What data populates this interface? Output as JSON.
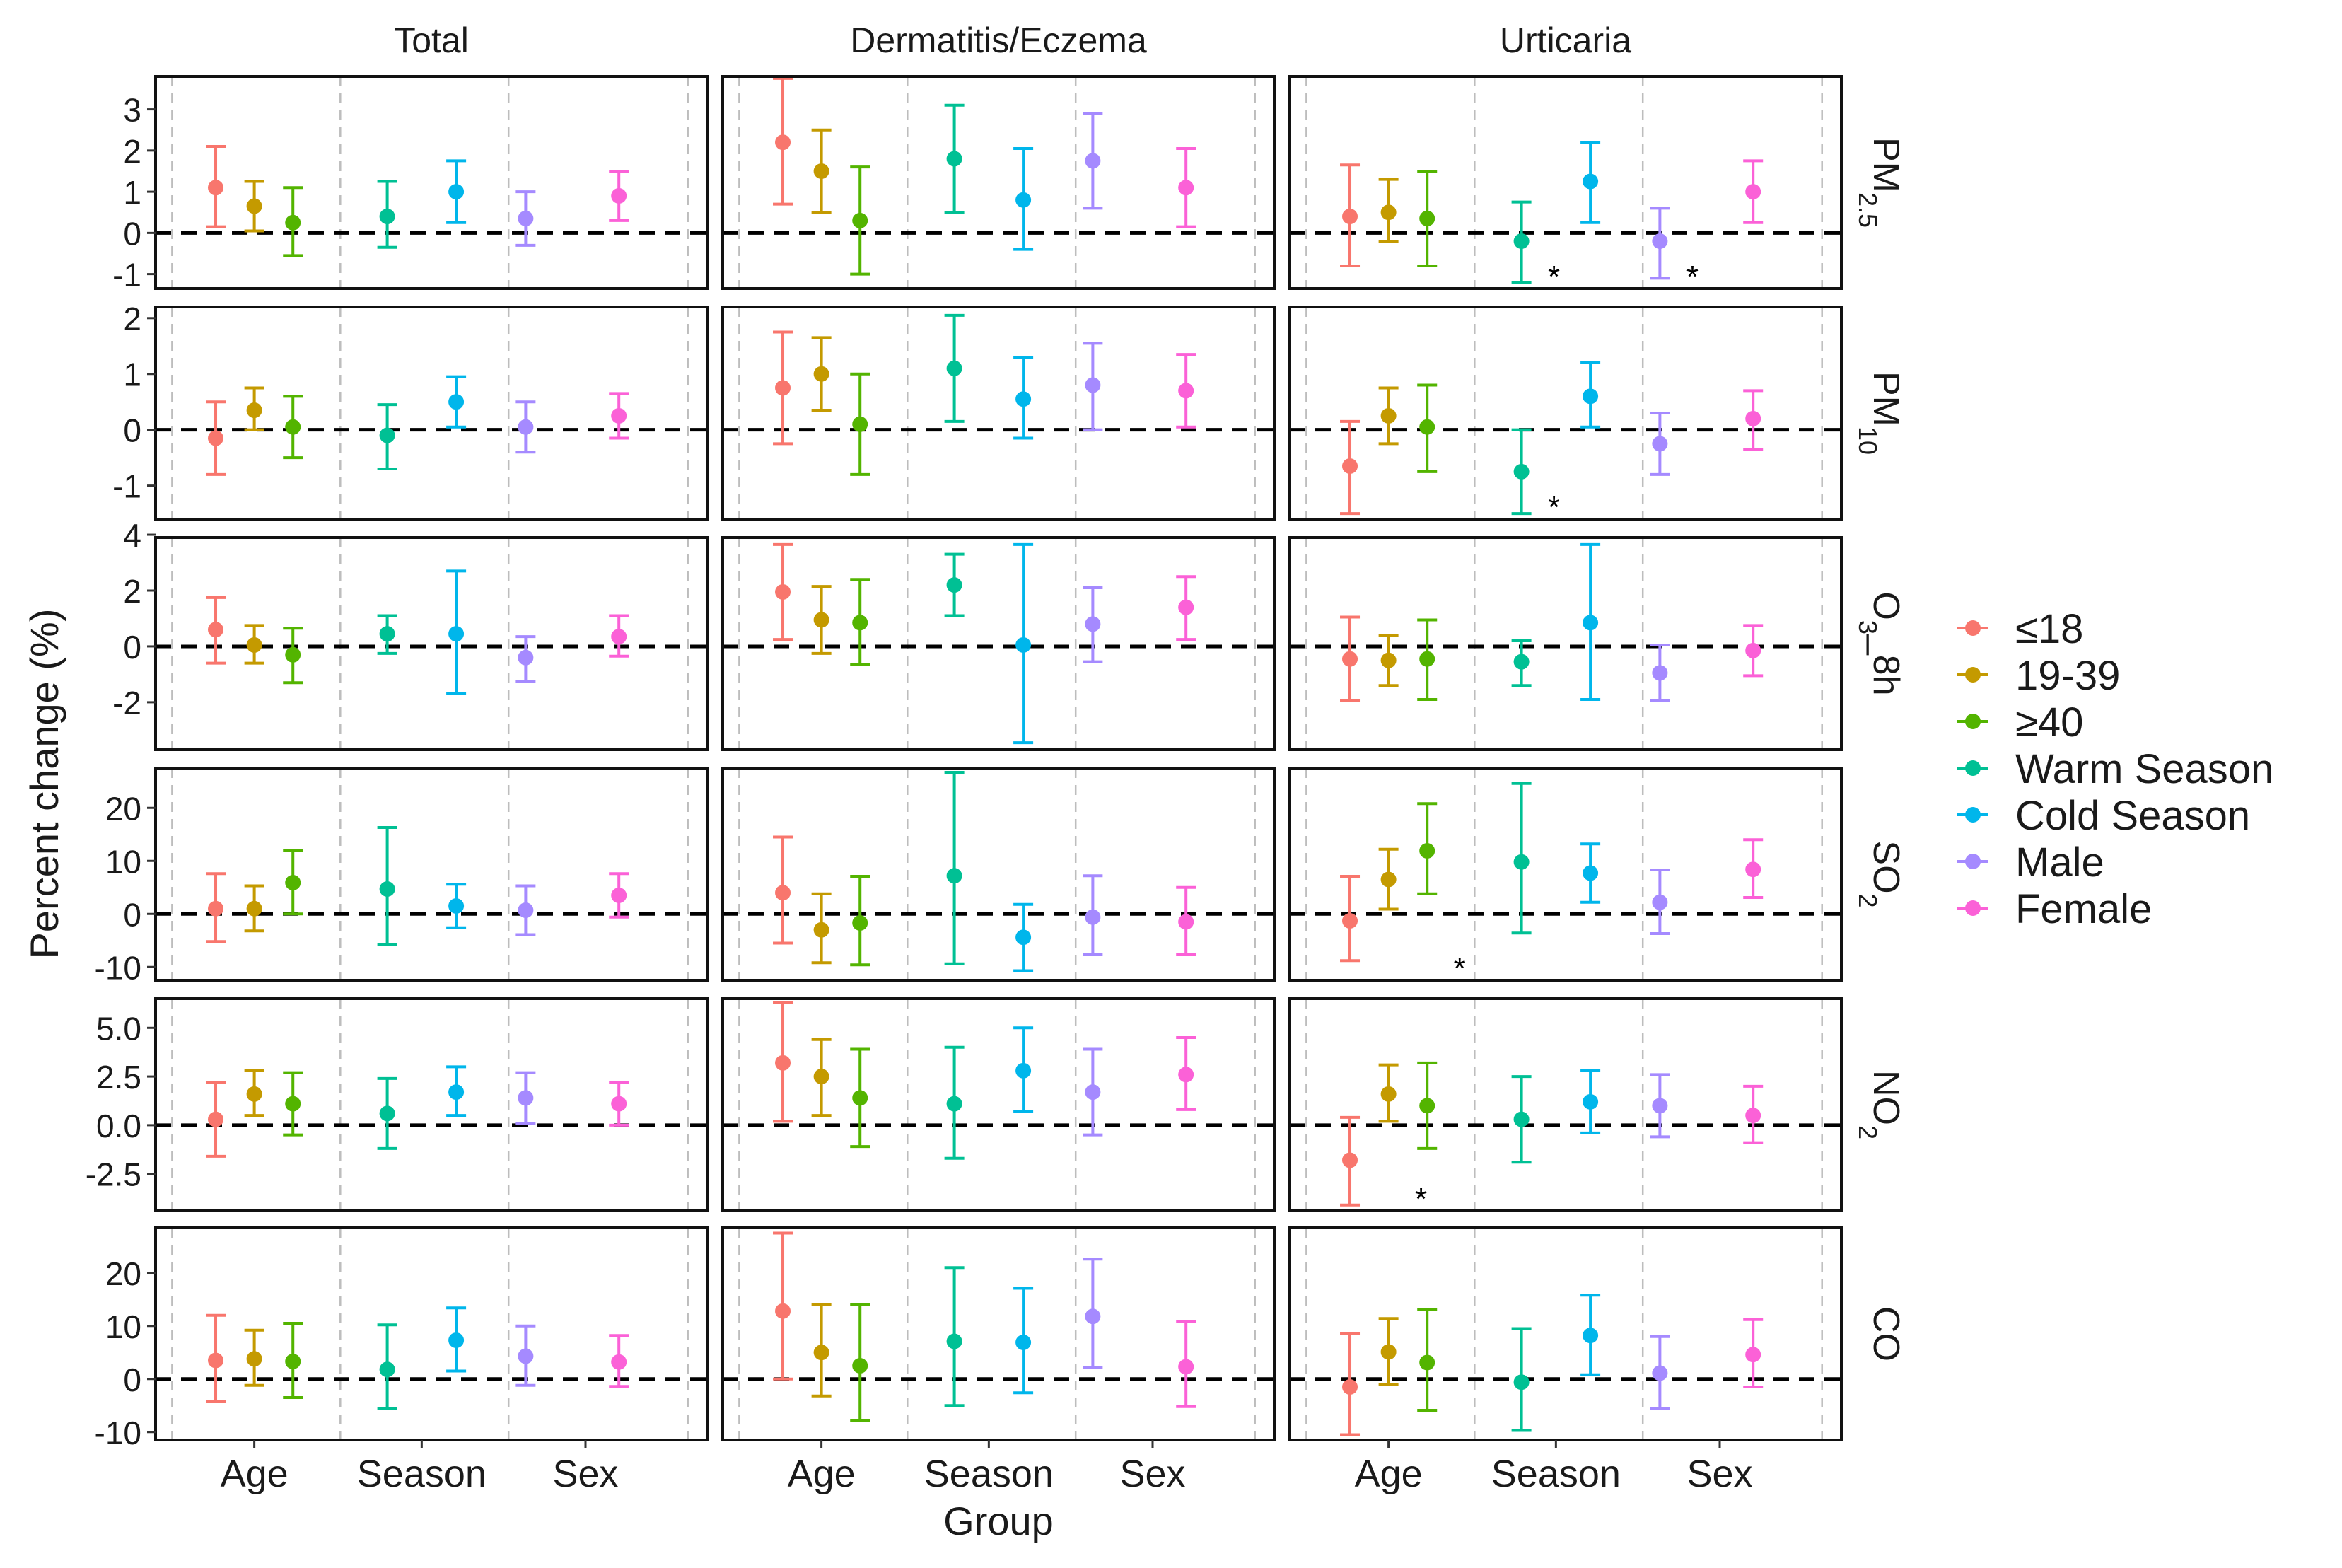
{
  "chart_data": {
    "type": "errorbar",
    "y_axis_label": "Percent change (%)",
    "x_axis_label": "Group",
    "columns": [
      "Total",
      "Dermatitis/Eczema",
      "Urticaria"
    ],
    "groups": [
      "Age",
      "Season",
      "Sex"
    ],
    "series": [
      {
        "name": "≤18",
        "group": "Age",
        "color": "#F8766D"
      },
      {
        "name": "19-39",
        "group": "Age",
        "color": "#C49A00"
      },
      {
        "name": "≥40",
        "group": "Age",
        "color": "#53B400"
      },
      {
        "name": "Warm Season",
        "group": "Season",
        "color": "#00C094"
      },
      {
        "name": "Cold Season",
        "group": "Season",
        "color": "#00B6EB"
      },
      {
        "name": "Male",
        "group": "Sex",
        "color": "#A58AFF"
      },
      {
        "name": "Female",
        "group": "Sex",
        "color": "#FB61D7"
      }
    ],
    "rows": [
      {
        "label_main": "PM",
        "label_sub": "2.5",
        "ylim": [
          -1.35,
          3.8
        ],
        "ticks": [
          "3",
          "2",
          "1",
          "0",
          "-1"
        ],
        "tick_values": [
          3,
          2,
          1,
          0,
          -1
        ],
        "panels": [
          {
            "values": [
              [
                1.1,
                0.15,
                2.1
              ],
              [
                0.65,
                0.05,
                1.25
              ],
              [
                0.25,
                -0.55,
                1.1
              ],
              [
                0.4,
                -0.35,
                1.25
              ],
              [
                1.0,
                0.25,
                1.75
              ],
              [
                0.35,
                -0.3,
                1.0
              ],
              [
                0.9,
                0.3,
                1.5
              ]
            ],
            "stars": []
          },
          {
            "values": [
              [
                2.2,
                0.7,
                3.75
              ],
              [
                1.5,
                0.5,
                2.5
              ],
              [
                0.3,
                -1.0,
                1.6
              ],
              [
                1.8,
                0.5,
                3.1
              ],
              [
                0.8,
                -0.4,
                2.05
              ],
              [
                1.75,
                0.6,
                2.9
              ],
              [
                1.1,
                0.15,
                2.05
              ]
            ],
            "stars": []
          },
          {
            "values": [
              [
                0.4,
                -0.8,
                1.65
              ],
              [
                0.5,
                -0.2,
                1.3
              ],
              [
                0.35,
                -0.8,
                1.5
              ],
              [
                -0.2,
                -1.2,
                0.75
              ],
              [
                1.25,
                0.25,
                2.2
              ],
              [
                -0.2,
                -1.1,
                0.6
              ],
              [
                1.0,
                0.25,
                1.75
              ]
            ],
            "stars": [
              3,
              5
            ]
          }
        ]
      },
      {
        "label_main": "PM",
        "label_sub": "10",
        "ylim": [
          -1.6,
          2.2
        ],
        "ticks": [
          "2",
          "1",
          "0",
          "-1"
        ],
        "tick_values": [
          2,
          1,
          0,
          -1
        ],
        "panels": [
          {
            "values": [
              [
                -0.15,
                -0.8,
                0.5
              ],
              [
                0.35,
                0.0,
                0.75
              ],
              [
                0.05,
                -0.5,
                0.6
              ],
              [
                -0.1,
                -0.7,
                0.45
              ],
              [
                0.5,
                0.05,
                0.95
              ],
              [
                0.05,
                -0.4,
                0.5
              ],
              [
                0.25,
                -0.15,
                0.65
              ]
            ],
            "stars": []
          },
          {
            "values": [
              [
                0.75,
                -0.25,
                1.75
              ],
              [
                1.0,
                0.35,
                1.65
              ],
              [
                0.1,
                -0.8,
                1.0
              ],
              [
                1.1,
                0.15,
                2.05
              ],
              [
                0.55,
                -0.15,
                1.3
              ],
              [
                0.8,
                0.0,
                1.55
              ],
              [
                0.7,
                0.05,
                1.35
              ]
            ],
            "stars": []
          },
          {
            "values": [
              [
                -0.65,
                -1.5,
                0.15
              ],
              [
                0.25,
                -0.25,
                0.75
              ],
              [
                0.05,
                -0.75,
                0.8
              ],
              [
                -0.75,
                -1.5,
                0.0
              ],
              [
                0.6,
                0.05,
                1.2
              ],
              [
                -0.25,
                -0.8,
                0.3
              ],
              [
                0.2,
                -0.35,
                0.7
              ]
            ],
            "stars": [
              3
            ]
          }
        ]
      },
      {
        "label_main": "O",
        "label_sub": "3",
        "label_tail": "_8h",
        "ylim": [
          -3.7,
          3.9
        ],
        "ticks": [
          "4",
          "2",
          "0",
          "-2"
        ],
        "tick_values": [
          4,
          2,
          0,
          -2
        ],
        "panels": [
          {
            "values": [
              [
                0.6,
                -0.6,
                1.75
              ],
              [
                0.05,
                -0.6,
                0.75
              ],
              [
                -0.3,
                -1.3,
                0.65
              ],
              [
                0.45,
                -0.25,
                1.1
              ],
              [
                0.45,
                -1.7,
                2.7
              ],
              [
                -0.4,
                -1.25,
                0.35
              ],
              [
                0.35,
                -0.35,
                1.1
              ]
            ],
            "stars": []
          },
          {
            "values": [
              [
                1.95,
                0.25,
                3.65
              ],
              [
                0.95,
                -0.25,
                2.15
              ],
              [
                0.85,
                -0.65,
                2.4
              ],
              [
                2.2,
                1.1,
                3.3
              ],
              [
                0.05,
                -3.45,
                3.65
              ],
              [
                0.8,
                -0.55,
                2.1
              ],
              [
                1.4,
                0.25,
                2.5
              ]
            ],
            "stars": []
          },
          {
            "values": [
              [
                -0.45,
                -1.95,
                1.05
              ],
              [
                -0.5,
                -1.4,
                0.4
              ],
              [
                -0.45,
                -1.9,
                0.95
              ],
              [
                -0.55,
                -1.4,
                0.2
              ],
              [
                0.85,
                -1.9,
                3.65
              ],
              [
                -0.95,
                -1.95,
                0.05
              ],
              [
                -0.15,
                -1.05,
                0.75
              ]
            ],
            "stars": []
          }
        ]
      },
      {
        "label_main": "SO",
        "label_sub": "2",
        "ylim": [
          -12.5,
          27.5
        ],
        "ticks": [
          "20",
          "10",
          "0",
          "-10"
        ],
        "tick_values": [
          20,
          10,
          0,
          -10
        ],
        "panels": [
          {
            "values": [
              [
                1.0,
                -5.2,
                7.6
              ],
              [
                1.0,
                -3.2,
                5.3
              ],
              [
                5.9,
                0.0,
                12.0
              ],
              [
                4.7,
                -5.8,
                16.3
              ],
              [
                1.5,
                -2.6,
                5.6
              ],
              [
                0.7,
                -3.9,
                5.3
              ],
              [
                3.5,
                -0.6,
                7.6
              ]
            ],
            "stars": []
          },
          {
            "values": [
              [
                4.0,
                -5.5,
                14.5
              ],
              [
                -3.0,
                -9.2,
                3.8
              ],
              [
                -1.7,
                -9.6,
                7.1
              ],
              [
                7.2,
                -9.4,
                26.7
              ],
              [
                -4.4,
                -10.7,
                1.8
              ],
              [
                -0.6,
                -7.6,
                7.2
              ],
              [
                -1.5,
                -7.7,
                5.0
              ]
            ],
            "stars": []
          },
          {
            "values": [
              [
                -1.3,
                -8.8,
                7.1
              ],
              [
                6.5,
                0.9,
                12.2
              ],
              [
                11.9,
                3.8,
                20.8
              ],
              [
                9.8,
                -3.6,
                24.6
              ],
              [
                7.7,
                2.2,
                13.2
              ],
              [
                2.2,
                -3.7,
                8.3
              ],
              [
                8.4,
                3.1,
                14.0
              ]
            ],
            "stars": [
              2
            ]
          }
        ]
      },
      {
        "label_main": "NO",
        "label_sub": "2",
        "ylim": [
          -4.4,
          6.5
        ],
        "ticks": [
          "5.0",
          "2.5",
          "0.0",
          "-2.5"
        ],
        "tick_values": [
          5.0,
          2.5,
          0.0,
          -2.5
        ],
        "panels": [
          {
            "values": [
              [
                0.3,
                -1.6,
                2.2
              ],
              [
                1.6,
                0.5,
                2.8
              ],
              [
                1.1,
                -0.5,
                2.7
              ],
              [
                0.6,
                -1.2,
                2.4
              ],
              [
                1.7,
                0.5,
                3.0
              ],
              [
                1.4,
                0.1,
                2.7
              ],
              [
                1.1,
                0.0,
                2.2
              ]
            ],
            "stars": []
          },
          {
            "values": [
              [
                3.2,
                0.2,
                6.3
              ],
              [
                2.5,
                0.5,
                4.4
              ],
              [
                1.4,
                -1.1,
                3.9
              ],
              [
                1.1,
                -1.7,
                4.0
              ],
              [
                2.8,
                0.7,
                5.0
              ],
              [
                1.7,
                -0.5,
                3.9
              ],
              [
                2.6,
                0.8,
                4.5
              ]
            ],
            "stars": []
          },
          {
            "values": [
              [
                -1.8,
                -4.1,
                0.4
              ],
              [
                1.6,
                0.2,
                3.1
              ],
              [
                1.0,
                -1.2,
                3.2
              ],
              [
                0.3,
                -1.9,
                2.5
              ],
              [
                1.2,
                -0.4,
                2.8
              ],
              [
                1.0,
                -0.6,
                2.6
              ],
              [
                0.5,
                -0.9,
                2.0
              ]
            ],
            "stars": [
              1
            ]
          }
        ]
      },
      {
        "label_main": "CO",
        "label_sub": "",
        "ylim": [
          -11.5,
          28.5
        ],
        "ticks": [
          "20",
          "10",
          "0",
          "-10"
        ],
        "tick_values": [
          20,
          10,
          0,
          -10
        ],
        "panels": [
          {
            "values": [
              [
                3.5,
                -4.2,
                12.0
              ],
              [
                3.8,
                -1.2,
                9.2
              ],
              [
                3.3,
                -3.5,
                10.5
              ],
              [
                1.8,
                -5.5,
                10.2
              ],
              [
                7.3,
                1.5,
                13.4
              ],
              [
                4.3,
                -1.2,
                10.0
              ],
              [
                3.2,
                -1.4,
                8.2
              ]
            ],
            "stars": []
          },
          {
            "values": [
              [
                12.8,
                0.0,
                27.5
              ],
              [
                5.0,
                -3.2,
                14.1
              ],
              [
                2.5,
                -7.8,
                14.0
              ],
              [
                7.1,
                -5.0,
                21.0
              ],
              [
                6.9,
                -2.6,
                17.1
              ],
              [
                11.8,
                2.1,
                22.6
              ],
              [
                2.3,
                -5.2,
                10.8
              ]
            ],
            "stars": []
          },
          {
            "values": [
              [
                -1.5,
                -10.5,
                8.6
              ],
              [
                5.1,
                -1.0,
                11.4
              ],
              [
                3.1,
                -5.9,
                13.1
              ],
              [
                -0.6,
                -9.7,
                9.5
              ],
              [
                8.2,
                0.8,
                15.8
              ],
              [
                1.1,
                -5.5,
                8.0
              ],
              [
                4.6,
                -1.5,
                11.2
              ]
            ],
            "stars": []
          }
        ]
      }
    ]
  }
}
